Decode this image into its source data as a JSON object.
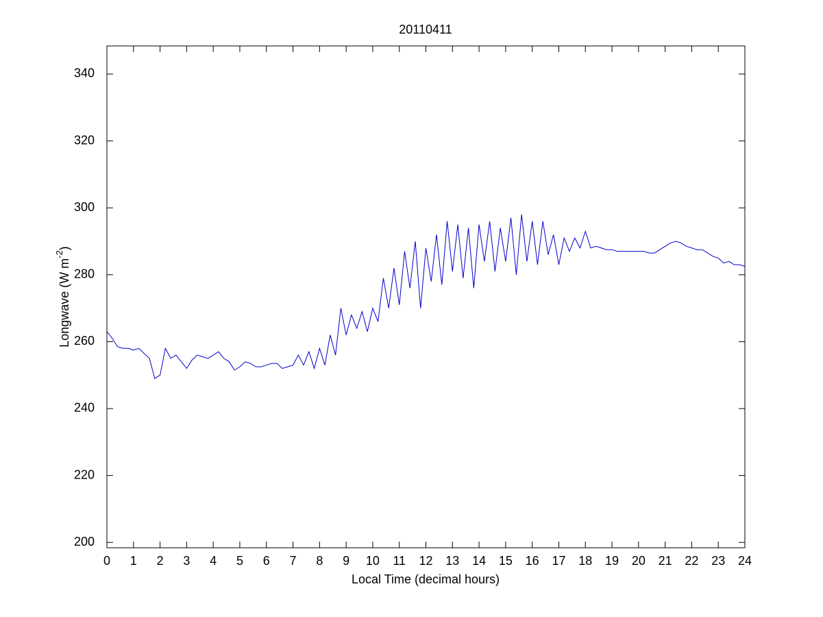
{
  "chart_data": {
    "type": "line",
    "title": "20110411",
    "xlabel": "Local Time (decimal hours)",
    "ylabel": {
      "text": "Longwave (W m",
      "superscript": "-2",
      "suffix": ")"
    },
    "color": "#0000cc",
    "xlim": [
      0,
      24
    ],
    "xticks": [
      0,
      1,
      2,
      3,
      4,
      5,
      6,
      7,
      8,
      9,
      10,
      11,
      12,
      13,
      14,
      15,
      16,
      17,
      18,
      19,
      20,
      21,
      22,
      23,
      24
    ],
    "ylim": [
      198.4,
      348.4
    ],
    "yticks": [
      200,
      220,
      240,
      260,
      280,
      300,
      320,
      340
    ],
    "x": [
      0,
      0.2,
      0.4,
      0.6,
      0.8,
      1,
      1.2,
      1.4,
      1.6,
      1.8,
      2,
      2.2,
      2.4,
      2.6,
      2.8,
      3,
      3.2,
      3.4,
      3.6,
      3.8,
      4,
      4.2,
      4.4,
      4.6,
      4.8,
      5,
      5.2,
      5.4,
      5.6,
      5.8,
      6,
      6.2,
      6.4,
      6.6,
      6.8,
      7,
      7.2,
      7.4,
      7.6,
      7.8,
      8,
      8.2,
      8.4,
      8.6,
      8.8,
      9,
      9.2,
      9.4,
      9.6,
      9.8,
      10,
      10.2,
      10.4,
      10.6,
      10.8,
      11,
      11.2,
      11.4,
      11.6,
      11.8,
      12,
      12.2,
      12.4,
      12.6,
      12.8,
      13,
      13.2,
      13.4,
      13.6,
      13.8,
      14,
      14.2,
      14.4,
      14.6,
      14.8,
      15,
      15.2,
      15.4,
      15.6,
      15.8,
      16,
      16.2,
      16.4,
      16.6,
      16.8,
      17,
      17.2,
      17.4,
      17.6,
      17.8,
      18,
      18.2,
      18.4,
      18.6,
      18.8,
      19,
      19.2,
      19.4,
      19.6,
      19.8,
      20,
      20.2,
      20.4,
      20.6,
      20.8,
      21,
      21.2,
      21.4,
      21.6,
      21.8,
      22,
      22.2,
      22.4,
      22.6,
      22.8,
      23,
      23.2,
      23.4,
      23.6,
      23.8,
      24
    ],
    "values": [
      263,
      261,
      258.5,
      258,
      258,
      257.5,
      258,
      256.5,
      255,
      249,
      250,
      258,
      255,
      256,
      254,
      252,
      254.5,
      256,
      255.5,
      255,
      256,
      257,
      255,
      254,
      251.5,
      252.5,
      254,
      253.5,
      252.5,
      252.5,
      253,
      253.5,
      253.5,
      252,
      252.5,
      253,
      256,
      253,
      257,
      252,
      258,
      253,
      262,
      256,
      270,
      262,
      268,
      264,
      269,
      263,
      270,
      266,
      279,
      270,
      282,
      271,
      287,
      276,
      290,
      270,
      288,
      278,
      292,
      277,
      296,
      281,
      295,
      279,
      294,
      276,
      295,
      284,
      296,
      281,
      294,
      284,
      297,
      280,
      298,
      284,
      296,
      283,
      296,
      286,
      292,
      283,
      291,
      287,
      291,
      288,
      293,
      288,
      288.5,
      288,
      287.5,
      287.5,
      287,
      287,
      287,
      287,
      287,
      287,
      286.5,
      286.5,
      287.5,
      288.5,
      289.5,
      290,
      289.5,
      288.5,
      288,
      287.5,
      287.5,
      286.5,
      285.5,
      285,
      283.5,
      284,
      283,
      283,
      282.5
    ]
  }
}
